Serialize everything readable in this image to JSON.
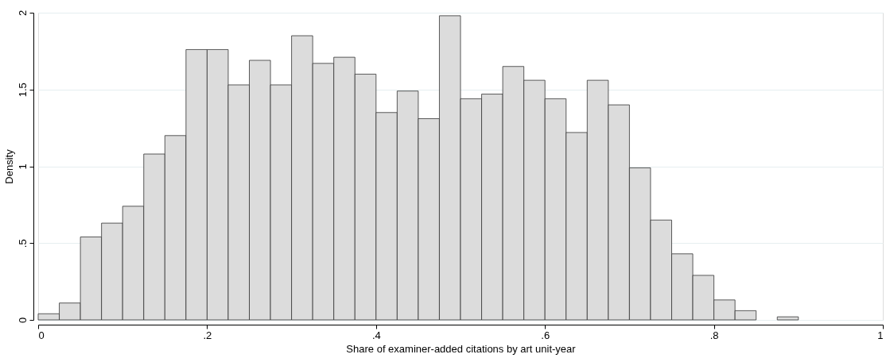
{
  "chart_data": {
    "type": "histogram",
    "xlabel": "Share of examiner-added citations by art unit-year",
    "ylabel": "Density",
    "bins": [
      0,
      0.025,
      0.05,
      0.075,
      0.1,
      0.125,
      0.15,
      0.175,
      0.2,
      0.225,
      0.25,
      0.275,
      0.3,
      0.325,
      0.35,
      0.375,
      0.4,
      0.425,
      0.45,
      0.475,
      0.5,
      0.525,
      0.55,
      0.575,
      0.6,
      0.625,
      0.65,
      0.675,
      0.7,
      0.725,
      0.75,
      0.775,
      0.8,
      0.825,
      0.85,
      0.875,
      0.9
    ],
    "values": [
      0.04,
      0.11,
      0.54,
      0.63,
      0.74,
      1.08,
      1.2,
      1.76,
      1.76,
      1.53,
      1.69,
      1.53,
      1.85,
      1.67,
      1.71,
      1.6,
      1.35,
      1.49,
      1.31,
      1.98,
      1.44,
      1.47,
      1.65,
      1.56,
      1.44,
      1.22,
      1.56,
      1.4,
      0.99,
      0.65,
      0.43,
      0.29,
      0.13,
      0.06,
      null,
      0.02
    ],
    "color": "#dcdcdc",
    "xlim": [
      0,
      1
    ],
    "ylim": [
      0,
      2
    ],
    "xticks": [
      0,
      {
        "value": 0.2,
        "label": ".2"
      },
      {
        "value": 0.4,
        "label": ".4"
      },
      {
        "value": 0.6,
        "label": ".6"
      },
      {
        "value": 0.8,
        "label": ".8"
      },
      1
    ],
    "yticks": [
      0,
      {
        "value": 0.5,
        "label": ".5"
      },
      1,
      {
        "value": 1.5,
        "label": "1.5"
      },
      2
    ],
    "grid": "y"
  }
}
